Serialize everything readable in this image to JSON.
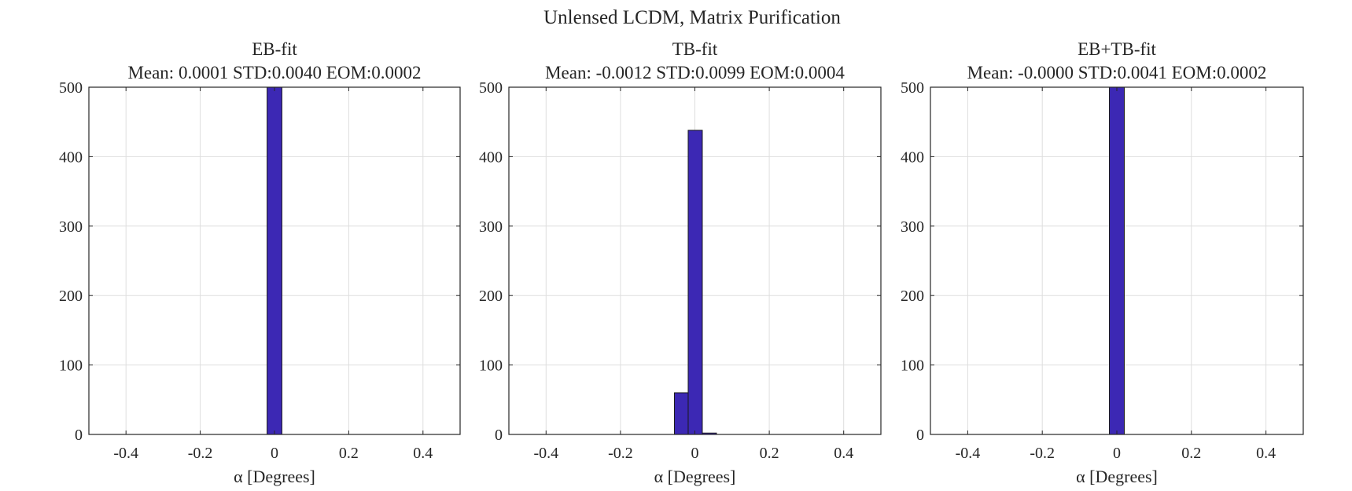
{
  "figure": {
    "suptitle": "Unlensed LCDM, Matrix Purification"
  },
  "colors": {
    "bar_fill": "#3c28b4",
    "bar_edge": "#1a1a1a",
    "grid": "#dedede",
    "axis": "#262626"
  },
  "chart_data": [
    {
      "type": "bar",
      "title": "EB-fit",
      "subtitle": "Mean: 0.0001 STD:0.0040 EOM:0.0002",
      "xlabel": "α [Degrees]",
      "ylabel": "",
      "xlim": [
        -0.5,
        0.5
      ],
      "ylim": [
        0,
        500
      ],
      "xticks": [
        -0.4,
        -0.2,
        0,
        0.2,
        0.4
      ],
      "xtick_labels": [
        "-0.4",
        "-0.2",
        "0",
        "0.2",
        "0.4"
      ],
      "yticks": [
        0,
        100,
        200,
        300,
        400,
        500
      ],
      "ytick_labels": [
        "0",
        "100",
        "200",
        "300",
        "400",
        "500"
      ],
      "grid": true,
      "bins": [
        {
          "x0": -0.02,
          "x1": 0.02,
          "count": 500
        }
      ]
    },
    {
      "type": "bar",
      "title": "TB-fit",
      "subtitle": "Mean: -0.0012 STD:0.0099 EOM:0.0004",
      "xlabel": "α [Degrees]",
      "ylabel": "",
      "xlim": [
        -0.5,
        0.5
      ],
      "ylim": [
        0,
        500
      ],
      "xticks": [
        -0.4,
        -0.2,
        0,
        0.2,
        0.4
      ],
      "xtick_labels": [
        "-0.4",
        "-0.2",
        "0",
        "0.2",
        "0.4"
      ],
      "yticks": [
        0,
        100,
        200,
        300,
        400,
        500
      ],
      "ytick_labels": [
        "0",
        "100",
        "200",
        "300",
        "400",
        "500"
      ],
      "grid": true,
      "bins": [
        {
          "x0": -0.055,
          "x1": -0.018,
          "count": 60
        },
        {
          "x0": -0.018,
          "x1": 0.02,
          "count": 438
        },
        {
          "x0": 0.02,
          "x1": 0.058,
          "count": 2
        }
      ]
    },
    {
      "type": "bar",
      "title": "EB+TB-fit",
      "subtitle": "Mean: -0.0000 STD:0.0041 EOM:0.0002",
      "xlabel": "α [Degrees]",
      "ylabel": "",
      "xlim": [
        -0.5,
        0.5
      ],
      "ylim": [
        0,
        500
      ],
      "xticks": [
        -0.4,
        -0.2,
        0,
        0.2,
        0.4
      ],
      "xtick_labels": [
        "-0.4",
        "-0.2",
        "0",
        "0.2",
        "0.4"
      ],
      "yticks": [
        0,
        100,
        200,
        300,
        400,
        500
      ],
      "ytick_labels": [
        "0",
        "100",
        "200",
        "300",
        "400",
        "500"
      ],
      "grid": true,
      "bins": [
        {
          "x0": -0.02,
          "x1": 0.02,
          "count": 500
        }
      ]
    }
  ]
}
